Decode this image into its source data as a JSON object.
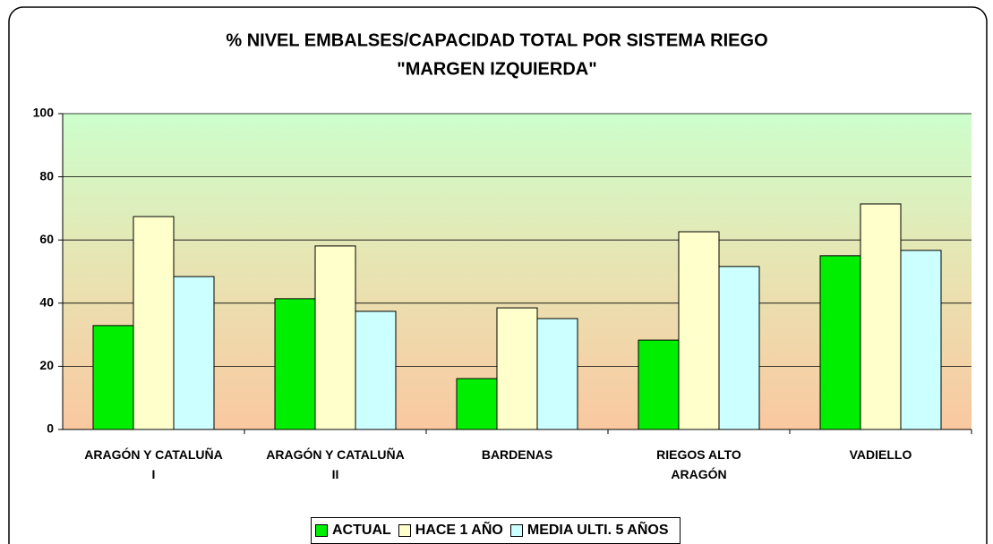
{
  "chart_data": {
    "type": "bar",
    "title": "% NIVEL EMBALSES/CAPACIDAD TOTAL POR SISTEMA  RIEGO",
    "subtitle": "\"MARGEN IZQUIERDA\"",
    "categories": [
      "ARAGÓN Y CATALUÑA\nI",
      "ARAGÓN Y CATALUÑA\nII",
      "BARDENAS",
      "RIEGOS ALTO\nARAGÓN",
      "VADIELLO"
    ],
    "series": [
      {
        "name": "ACTUAL",
        "color": "#00ee00",
        "values": [
          32.9,
          41.4,
          16.1,
          28.3,
          55.0
        ]
      },
      {
        "name": "HACE 1 AÑO",
        "color": "#ffffcc",
        "values": [
          67.4,
          58.1,
          38.5,
          62.6,
          71.4
        ]
      },
      {
        "name": "MEDIA  ULTI. 5 AÑOS",
        "color": "#ccffff",
        "values": [
          48.4,
          37.4,
          35.1,
          51.6,
          56.7
        ]
      }
    ],
    "ylim": [
      0,
      100
    ],
    "yticks": [
      0,
      20,
      40,
      60,
      80,
      100
    ],
    "grid": true,
    "legend": "bottom"
  }
}
